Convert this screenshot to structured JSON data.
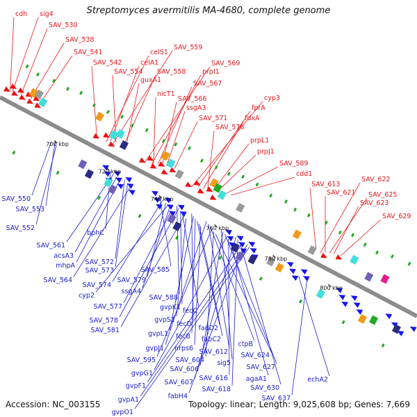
{
  "title": "Streptomyces avermitilis MA-4680, complete genome",
  "footer": {
    "accession": "Accession: NC_003155",
    "topology": "Topology: linear; Length: 9,025,608 bp; Genes: 7,669"
  },
  "colors": {
    "forward_label": "#e8161b",
    "reverse_label": "#1a1acc",
    "backbone": "#8c8c8c",
    "gene_forward": "#ee1111",
    "gene_reverse": "#1515ee",
    "rna": "#22aa22",
    "cyan": "#44dddd",
    "orange": "#f09a1a",
    "navy": "#2a2a80",
    "grey": "#9a9a9a",
    "purple": "#7060b8"
  },
  "scale_ticks": [
    "700 kbp",
    "720 kbp",
    "740 kbp",
    "760 kbp",
    "780 kbp",
    "800 kbp"
  ],
  "forward_labels": [
    "cdh",
    "sig4",
    "SAV_530",
    "SAV_538",
    "SAV_541",
    "SAV_542",
    "celS1",
    "SAV_559",
    "celA1",
    "SAV_554",
    "SAV_558",
    "guxA1",
    "SAV_569",
    "prpI1",
    "nicT1",
    "SAV_567",
    "SAV_566",
    "ssgA3",
    "SAV_571",
    "cyp3",
    "fprA",
    "fdxA",
    "SAV_576",
    "prpL1",
    "prpJ1",
    "SAV_589",
    "cdd1",
    "SAV_622",
    "SAV_613",
    "SAV_621",
    "SAV_625",
    "SAV_623",
    "SAV_629"
  ],
  "reverse_labels": [
    "SAV_553",
    "SAV_550",
    "SAV_552",
    "bphC",
    "SAV_561",
    "acsA3",
    "mhpA",
    "SAV_572",
    "SAV_573",
    "SAV_564",
    "SAV_585",
    "SAV_574",
    "SAV_579",
    "cyp2",
    "ssgA4",
    "SAV_577",
    "SAV_588",
    "SAV_578",
    "gvpK1",
    "fecC",
    "SAV_581",
    "gvpS1",
    "fecD",
    "gvpL1",
    "fecB",
    "fadD2",
    "fabC2",
    "nrps6",
    "gvpJ1",
    "SAV_612",
    "ctpB",
    "SAV_595",
    "SAV_604",
    "SAV_624",
    "sig5",
    "SAV_606",
    "SAV_627",
    "gvpG1",
    "SAV_616",
    "agaA1",
    "SAV_607",
    "SAV_618",
    "SAV_630",
    "gvpF1",
    "echA2",
    "fabH4",
    "SAV_637",
    "gvpA1",
    "gvpO1"
  ]
}
